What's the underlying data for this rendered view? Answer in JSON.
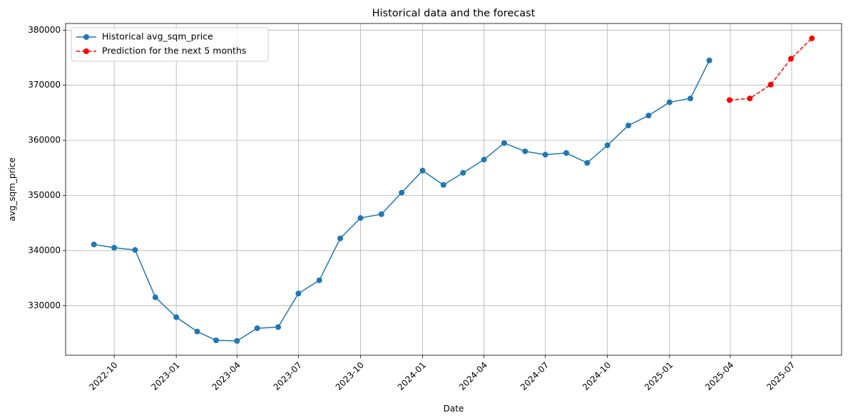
{
  "chart_data": {
    "type": "line",
    "title": "Historical data and the forecast",
    "xlabel": "Date",
    "ylabel": "avg_sqm_price",
    "grid": true,
    "legend_position": "top-left",
    "xlim": [
      "2022-07-21",
      "2025-09-13"
    ],
    "ylim": [
      321000,
      381200
    ],
    "x_ticks": [
      "2022-10",
      "2023-01",
      "2023-04",
      "2023-07",
      "2023-10",
      "2024-01",
      "2024-04",
      "2024-07",
      "2024-10",
      "2025-01",
      "2025-04",
      "2025-07"
    ],
    "x_tick_dates": [
      "2022-10-01",
      "2023-01-01",
      "2023-04-01",
      "2023-07-01",
      "2023-10-01",
      "2024-01-01",
      "2024-04-01",
      "2024-07-01",
      "2024-10-01",
      "2025-01-01",
      "2025-04-01",
      "2025-07-01"
    ],
    "y_ticks": [
      330000,
      340000,
      350000,
      360000,
      370000,
      380000
    ],
    "y_tick_labels": [
      "330000",
      "340000",
      "350000",
      "360000",
      "370000",
      "380000"
    ],
    "series": [
      {
        "name": "Historical avg_sqm_price",
        "color": "#1f77b4",
        "style": "solid",
        "marker": "circle",
        "x": [
          "2022-09-01",
          "2022-10-01",
          "2022-11-01",
          "2022-12-01",
          "2023-01-01",
          "2023-02-01",
          "2023-03-01",
          "2023-04-01",
          "2023-05-01",
          "2023-06-01",
          "2023-07-01",
          "2023-08-01",
          "2023-09-01",
          "2023-10-01",
          "2023-11-01",
          "2023-12-01",
          "2024-01-01",
          "2024-02-01",
          "2024-03-01",
          "2024-04-01",
          "2024-05-01",
          "2024-06-01",
          "2024-07-01",
          "2024-08-01",
          "2024-09-01",
          "2024-10-01",
          "2024-11-01",
          "2024-12-01",
          "2025-01-01",
          "2025-02-01",
          "2025-03-01"
        ],
        "values": [
          341100,
          340500,
          340100,
          331500,
          327900,
          325300,
          323700,
          323600,
          325900,
          326100,
          332200,
          334600,
          342200,
          345900,
          346600,
          350500,
          354500,
          351900,
          354100,
          356500,
          359500,
          358000,
          357400,
          357700,
          355900,
          359100,
          362700,
          364500,
          366900,
          367600,
          374500
        ]
      },
      {
        "name": "Prediction for the next 5 months",
        "color": "#ff0000",
        "style": "dashed",
        "marker": "circle",
        "x": [
          "2025-03-31",
          "2025-04-30",
          "2025-05-31",
          "2025-06-30",
          "2025-07-31"
        ],
        "values": [
          367300,
          367600,
          370100,
          374800,
          378500
        ]
      }
    ]
  }
}
